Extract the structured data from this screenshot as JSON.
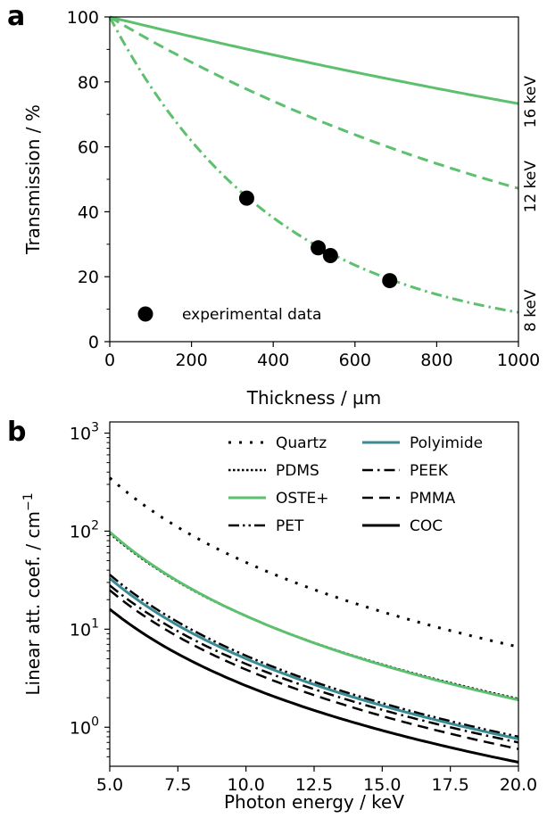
{
  "panels": {
    "a": {
      "letter": "a"
    },
    "b": {
      "letter": "b"
    }
  },
  "chart_data": [
    {
      "type": "line",
      "xlabel": "Thickness / µm",
      "ylabel": "Transmission / %",
      "xlim": [
        0,
        1000
      ],
      "ylim": [
        0,
        100
      ],
      "xticks": [
        0,
        200,
        400,
        600,
        800,
        1000
      ],
      "yticks": [
        0,
        20,
        40,
        60,
        80,
        100
      ],
      "grid": false,
      "color": "#5cc06e",
      "series": [
        {
          "name": "16 keV",
          "style": "solid",
          "x": [
            0,
            250,
            500,
            750,
            1000
          ],
          "y": [
            100,
            92.5,
            85.6,
            79.2,
            73.3
          ]
        },
        {
          "name": "12 keV",
          "style": "dashed",
          "x": [
            0,
            250,
            500,
            750,
            1000
          ],
          "y": [
            100,
            82.9,
            68.7,
            57.0,
            47.2
          ]
        },
        {
          "name": "8 keV",
          "style": "dashdot",
          "x": [
            0,
            250,
            500,
            750,
            1000
          ],
          "y": [
            100,
            54.8,
            30.0,
            16.4,
            9.0
          ]
        }
      ],
      "scatter": {
        "name": "experimental data",
        "color": "#000000",
        "points": [
          {
            "x": 335,
            "y": 44.2
          },
          {
            "x": 510,
            "y": 28.9
          },
          {
            "x": 540,
            "y": 26.5
          },
          {
            "x": 685,
            "y": 18.8
          }
        ]
      },
      "legend": {
        "label": "experimental data",
        "placement": "lower-left"
      }
    },
    {
      "type": "line",
      "xlabel": "Photon energy / keV",
      "ylabel": "Linear att. coef. / cm",
      "ylabel_sup": "−1",
      "xlim": [
        5,
        20
      ],
      "ylim": [
        0.4,
        1300
      ],
      "yscale": "log",
      "xticks": [
        5.0,
        7.5,
        10.0,
        12.5,
        15.0,
        17.5,
        20.0
      ],
      "xticklabels": [
        "5.0",
        "7.5",
        "10.0",
        "12.5",
        "15.0",
        "17.5",
        "20.0"
      ],
      "yticks": [
        1,
        10,
        100,
        1000
      ],
      "ytick_exponents": [
        "0",
        "1",
        "2",
        "3"
      ],
      "ytick_base": "10",
      "grid": false,
      "legend_placement": "top-right",
      "series": [
        {
          "name": "Quartz",
          "color": "#000000",
          "style": "loosely-dotted",
          "width": 3,
          "at_5": 350,
          "at_20": 6.6
        },
        {
          "name": "PDMS",
          "color": "#000000",
          "style": "dotted",
          "width": 2.5,
          "at_5": 95,
          "at_20": 1.95
        },
        {
          "name": "OSTE+",
          "color": "#5cc06e",
          "style": "solid",
          "width": 3,
          "at_5": 98,
          "at_20": 1.9
        },
        {
          "name": "PET",
          "color": "#000000",
          "style": "dash-dot-dot",
          "width": 2.5,
          "at_5": 36,
          "at_20": 0.8
        },
        {
          "name": "Polyimide",
          "color": "#3a8a96",
          "style": "solid",
          "width": 3,
          "at_5": 33,
          "at_20": 0.76
        },
        {
          "name": "PEEK",
          "color": "#000000",
          "style": "dashdot",
          "width": 2.5,
          "at_5": 28,
          "at_20": 0.7
        },
        {
          "name": "PMMA",
          "color": "#000000",
          "style": "dashed",
          "width": 2.5,
          "at_5": 25,
          "at_20": 0.6
        },
        {
          "name": "COC",
          "color": "#000000",
          "style": "solid",
          "width": 3,
          "at_5": 16,
          "at_20": 0.44
        }
      ]
    }
  ]
}
